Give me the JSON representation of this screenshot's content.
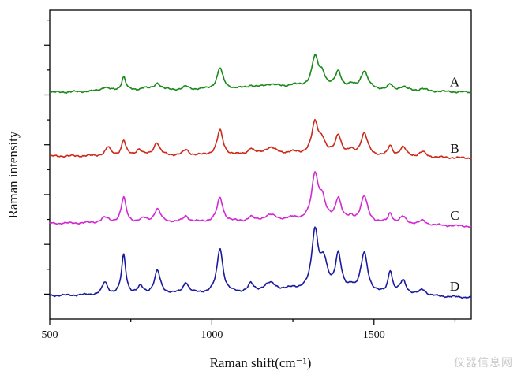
{
  "chart_data": {
    "type": "line",
    "title": "",
    "xlabel": "Raman shift(cm⁻¹)",
    "ylabel": "Raman intensity",
    "xlim": [
      500,
      1800
    ],
    "ylim": [
      0,
      6.2
    ],
    "x_ticks": [
      500,
      1000,
      1500
    ],
    "y_ticks_labeled": false,
    "grid": false,
    "series": [
      {
        "name": "A",
        "color": "#1a8a1a",
        "offset": 4.55,
        "baseline": [
          [
            500,
            0.0
          ],
          [
            1280,
            0.1
          ],
          [
            1800,
            0.0
          ]
        ],
        "peaks": [
          {
            "x": 670,
            "h": 0.08,
            "w": 14
          },
          {
            "x": 728,
            "h": 0.28,
            "w": 8
          },
          {
            "x": 790,
            "h": 0.05,
            "w": 12
          },
          {
            "x": 832,
            "h": 0.14,
            "w": 12
          },
          {
            "x": 920,
            "h": 0.06,
            "w": 10
          },
          {
            "x": 1025,
            "h": 0.42,
            "w": 11
          },
          {
            "x": 1120,
            "h": 0.05,
            "w": 10
          },
          {
            "x": 1180,
            "h": 0.07,
            "w": 25
          },
          {
            "x": 1250,
            "h": 0.04,
            "w": 20
          },
          {
            "x": 1318,
            "h": 0.58,
            "w": 12
          },
          {
            "x": 1340,
            "h": 0.25,
            "w": 12
          },
          {
            "x": 1390,
            "h": 0.32,
            "w": 11
          },
          {
            "x": 1430,
            "h": 0.06,
            "w": 10
          },
          {
            "x": 1470,
            "h": 0.36,
            "w": 13
          },
          {
            "x": 1550,
            "h": 0.1,
            "w": 8
          },
          {
            "x": 1590,
            "h": 0.07,
            "w": 12
          },
          {
            "x": 1650,
            "h": 0.04,
            "w": 12
          }
        ]
      },
      {
        "name": "B",
        "color": "#cc2a1a",
        "offset": 3.27,
        "baseline": [
          [
            500,
            0.0
          ],
          [
            1280,
            0.02
          ],
          [
            1800,
            -0.04
          ]
        ],
        "peaks": [
          {
            "x": 680,
            "h": 0.17,
            "w": 10
          },
          {
            "x": 728,
            "h": 0.3,
            "w": 8
          },
          {
            "x": 775,
            "h": 0.12,
            "w": 10
          },
          {
            "x": 830,
            "h": 0.26,
            "w": 11
          },
          {
            "x": 920,
            "h": 0.11,
            "w": 10
          },
          {
            "x": 1025,
            "h": 0.5,
            "w": 11
          },
          {
            "x": 1120,
            "h": 0.12,
            "w": 10
          },
          {
            "x": 1180,
            "h": 0.14,
            "w": 25
          },
          {
            "x": 1250,
            "h": 0.04,
            "w": 20
          },
          {
            "x": 1318,
            "h": 0.62,
            "w": 12
          },
          {
            "x": 1340,
            "h": 0.26,
            "w": 12
          },
          {
            "x": 1390,
            "h": 0.4,
            "w": 11
          },
          {
            "x": 1430,
            "h": 0.08,
            "w": 10
          },
          {
            "x": 1470,
            "h": 0.44,
            "w": 13
          },
          {
            "x": 1550,
            "h": 0.2,
            "w": 8
          },
          {
            "x": 1590,
            "h": 0.18,
            "w": 12
          },
          {
            "x": 1650,
            "h": 0.1,
            "w": 12
          }
        ]
      },
      {
        "name": "C",
        "color": "#d22ad2",
        "offset": 1.92,
        "baseline": [
          [
            500,
            0.0
          ],
          [
            1280,
            0.04
          ],
          [
            1800,
            -0.06
          ]
        ],
        "peaks": [
          {
            "x": 670,
            "h": 0.1,
            "w": 14
          },
          {
            "x": 728,
            "h": 0.5,
            "w": 9
          },
          {
            "x": 790,
            "h": 0.07,
            "w": 12
          },
          {
            "x": 832,
            "h": 0.26,
            "w": 12
          },
          {
            "x": 920,
            "h": 0.12,
            "w": 10
          },
          {
            "x": 1025,
            "h": 0.48,
            "w": 11
          },
          {
            "x": 1120,
            "h": 0.08,
            "w": 10
          },
          {
            "x": 1180,
            "h": 0.12,
            "w": 25
          },
          {
            "x": 1250,
            "h": 0.05,
            "w": 20
          },
          {
            "x": 1318,
            "h": 0.9,
            "w": 12
          },
          {
            "x": 1340,
            "h": 0.4,
            "w": 12
          },
          {
            "x": 1390,
            "h": 0.46,
            "w": 11
          },
          {
            "x": 1430,
            "h": 0.08,
            "w": 10
          },
          {
            "x": 1470,
            "h": 0.52,
            "w": 13
          },
          {
            "x": 1550,
            "h": 0.2,
            "w": 8
          },
          {
            "x": 1590,
            "h": 0.14,
            "w": 12
          },
          {
            "x": 1650,
            "h": 0.08,
            "w": 12
          }
        ]
      },
      {
        "name": "D",
        "color": "#1a1a9e",
        "offset": 0.47,
        "baseline": [
          [
            500,
            0.0
          ],
          [
            1280,
            0.06
          ],
          [
            1800,
            -0.04
          ]
        ],
        "peaks": [
          {
            "x": 670,
            "h": 0.24,
            "w": 10
          },
          {
            "x": 728,
            "h": 0.78,
            "w": 8
          },
          {
            "x": 780,
            "h": 0.14,
            "w": 10
          },
          {
            "x": 832,
            "h": 0.46,
            "w": 11
          },
          {
            "x": 920,
            "h": 0.22,
            "w": 10
          },
          {
            "x": 1025,
            "h": 0.9,
            "w": 11
          },
          {
            "x": 1120,
            "h": 0.16,
            "w": 10
          },
          {
            "x": 1180,
            "h": 0.18,
            "w": 25
          },
          {
            "x": 1250,
            "h": 0.06,
            "w": 20
          },
          {
            "x": 1318,
            "h": 1.18,
            "w": 12
          },
          {
            "x": 1345,
            "h": 0.55,
            "w": 14
          },
          {
            "x": 1390,
            "h": 0.74,
            "w": 11
          },
          {
            "x": 1430,
            "h": 0.1,
            "w": 10
          },
          {
            "x": 1470,
            "h": 0.8,
            "w": 13
          },
          {
            "x": 1550,
            "h": 0.46,
            "w": 8
          },
          {
            "x": 1590,
            "h": 0.28,
            "w": 12
          },
          {
            "x": 1650,
            "h": 0.12,
            "w": 12
          }
        ]
      }
    ]
  },
  "watermark": "仪器信息网"
}
